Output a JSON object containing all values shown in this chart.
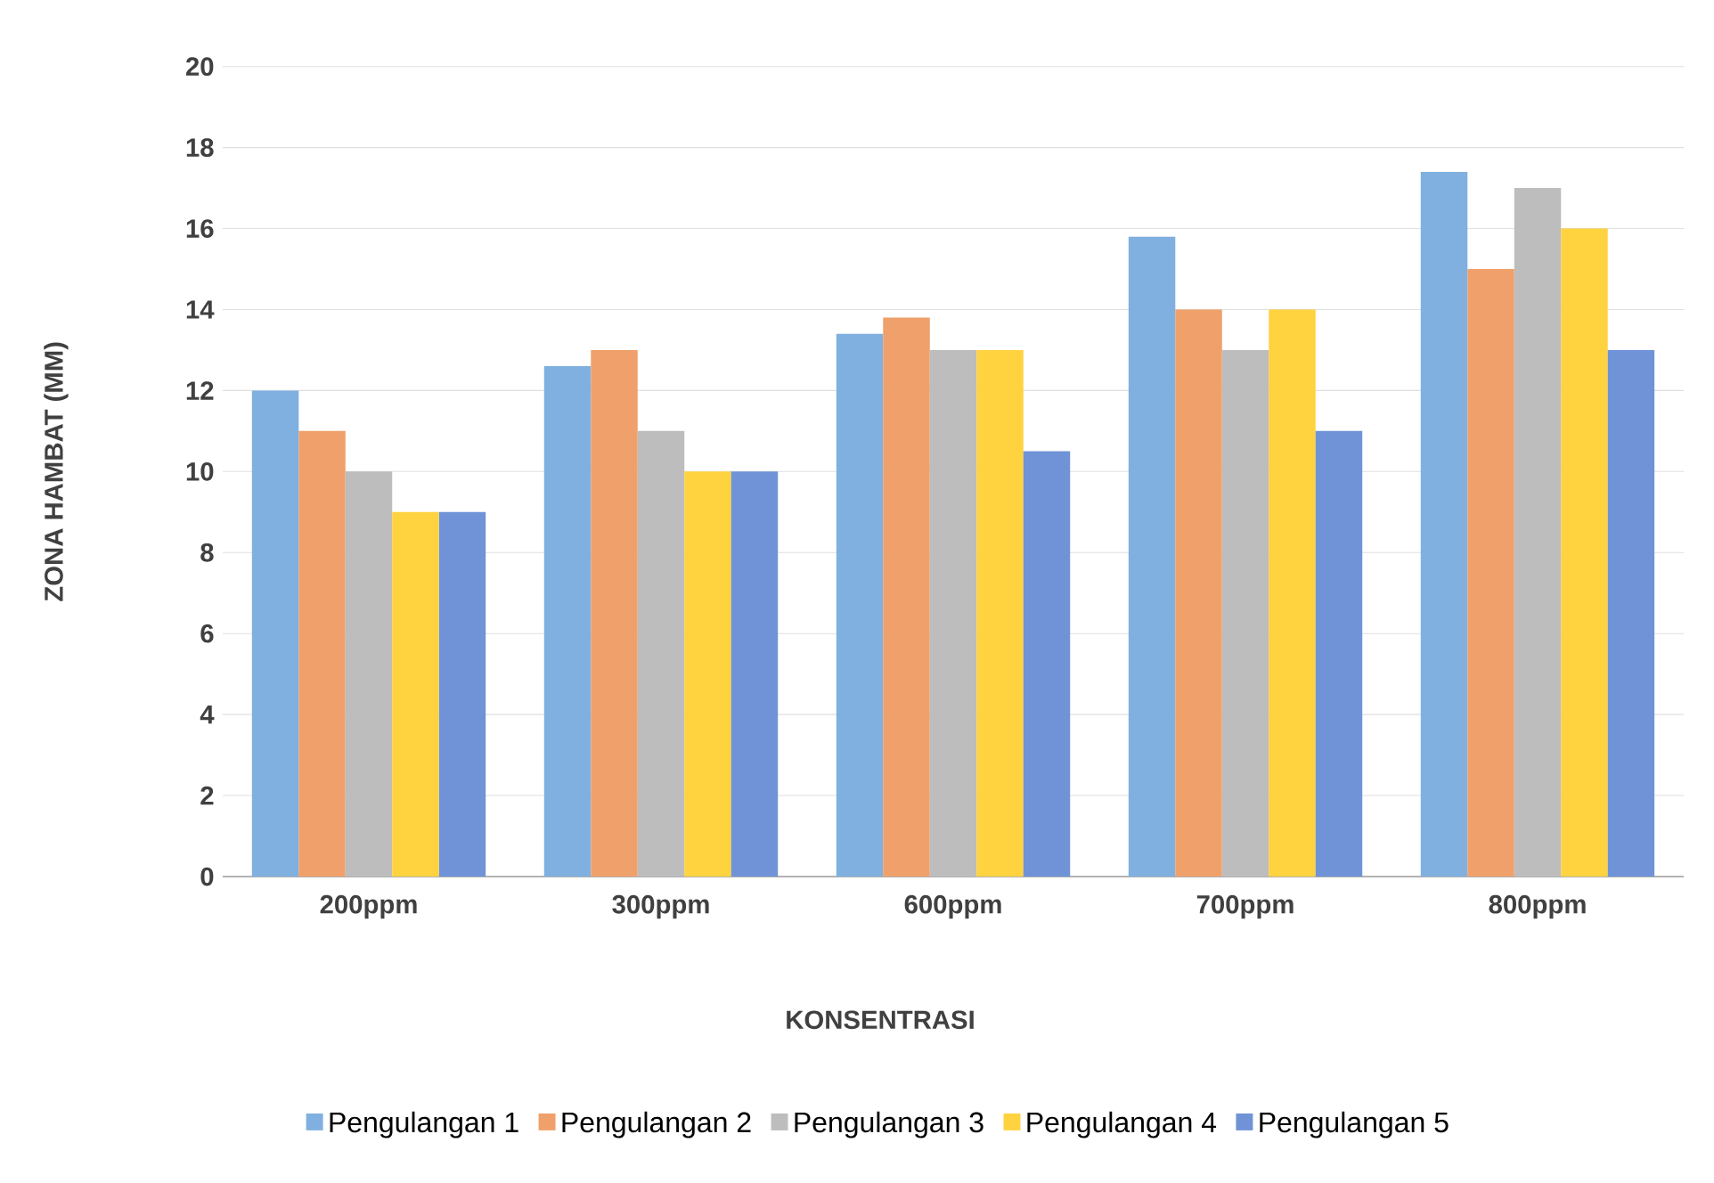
{
  "chart_data": {
    "type": "bar",
    "xlabel": "KONSENTRASI",
    "ylabel": "ZONA HAMBAT (MM)",
    "categories": [
      "200ppm",
      "300ppm",
      "600ppm",
      "700ppm",
      "800ppm"
    ],
    "series": [
      {
        "name": "Pengulangan 1",
        "color": "#7fb0e0",
        "values": [
          12,
          12.6,
          13.4,
          15.8,
          17.4
        ]
      },
      {
        "name": "Pengulangan 2",
        "color": "#f0a06a",
        "values": [
          11,
          13,
          13.8,
          14,
          15
        ]
      },
      {
        "name": "Pengulangan 3",
        "color": "#bdbdbd",
        "values": [
          10,
          11,
          13,
          13,
          17
        ]
      },
      {
        "name": "Pengulangan 4",
        "color": "#ffd23f",
        "values": [
          9,
          10,
          13,
          14,
          16
        ]
      },
      {
        "name": "Pengulangan 5",
        "color": "#6f93d6",
        "values": [
          9,
          10,
          10.5,
          11,
          13
        ]
      }
    ],
    "ylim": [
      0,
      20
    ],
    "yticks": [
      0,
      2,
      4,
      6,
      8,
      10,
      12,
      14,
      16,
      18,
      20
    ],
    "grid": "y",
    "legend": "bottom"
  }
}
